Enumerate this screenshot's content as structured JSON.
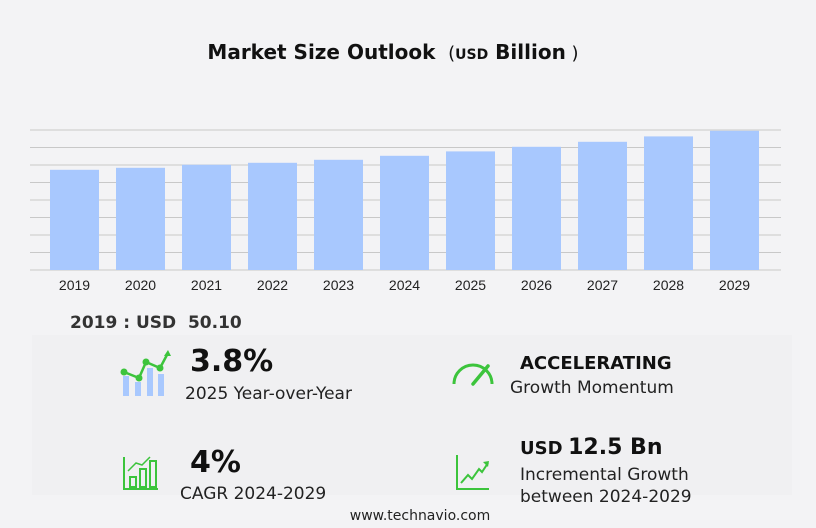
{
  "chart_data": {
    "type": "bar",
    "title": "Market Size Outlook",
    "unit_prefix": "USD",
    "unit": "Billion",
    "categories": [
      "2019",
      "2020",
      "2021",
      "2022",
      "2023",
      "2024",
      "2025",
      "2026",
      "2027",
      "2028",
      "2029"
    ],
    "values": [
      50.1,
      51.1,
      52.6,
      53.6,
      55.1,
      57.1,
      59.3,
      61.6,
      64.1,
      66.8,
      69.6
    ],
    "ylim": [
      0,
      70
    ],
    "grid": true,
    "y_axis_labels_visible": false,
    "bar_color": "#a8c8fe"
  },
  "first_value": {
    "label": "2019 : USD",
    "value": "50.10"
  },
  "stats": {
    "yoy": {
      "value": "3.8%",
      "label": "2025 Year-over-Year"
    },
    "momentum": {
      "value": "ACCELERATING",
      "label": "Growth Momentum"
    },
    "cagr": {
      "value": "4%",
      "label": "CAGR 2024-2029"
    },
    "incremental": {
      "prefix": "USD",
      "value": "12.5 Bn",
      "label1": "Incremental Growth",
      "label2": "between 2024-2029"
    }
  },
  "colors": {
    "accent_green": "#3cc43c",
    "icon_blue": "#a8c8fe"
  },
  "footer": "www.technavio.com"
}
